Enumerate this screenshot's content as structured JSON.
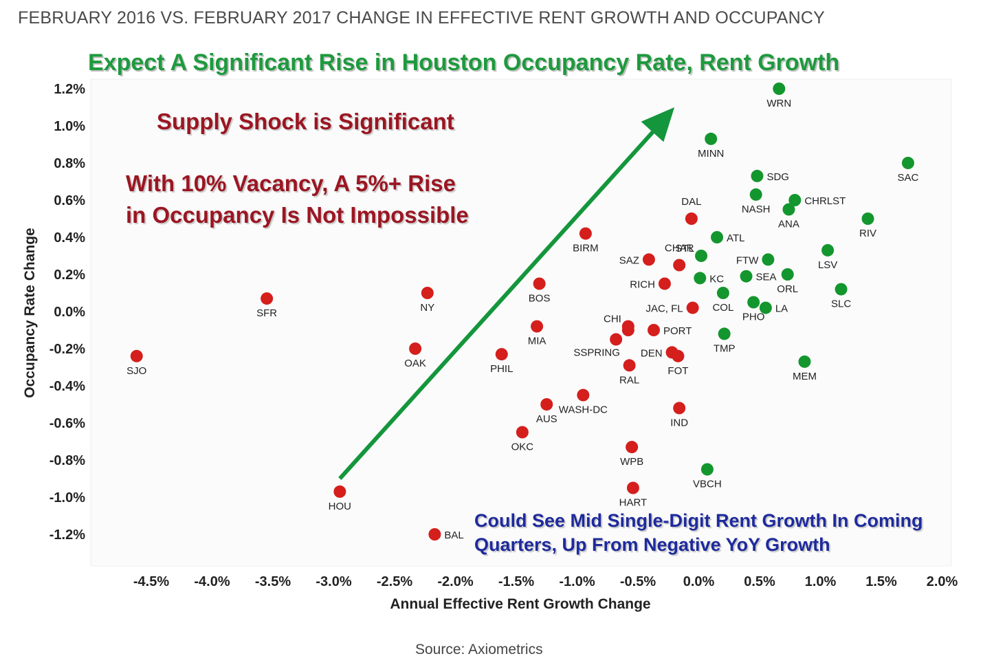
{
  "title": "FEBRUARY 2016 VS. FEBRUARY 2017 CHANGE IN EFFECTIVE RENT GROWTH AND OCCUPANCY",
  "headline": "Expect A Significant Rise in Houston Occupancy Rate, Rent Growth",
  "note_supply": "Supply Shock is Significant",
  "note_vacancy_1": "With 10% Vacancy, A 5%+ Rise",
  "note_vacancy_2": "in Occupancy Is Not Impossible",
  "note_growth_1": "Could See Mid Single-Digit Rent Growth In Coming",
  "note_growth_2": "Quarters, Up From Negative YoY Growth",
  "source": "Source: Axiometrics",
  "colors": {
    "red": "#d41f1c",
    "green": "#14962e",
    "arrow": "#14963c"
  },
  "chart_data": {
    "type": "scatter",
    "xlabel": "Annual Effective Rent Growth Change",
    "ylabel": "Occupancy Rate Change",
    "xlim": [
      -4.5,
      2.0
    ],
    "ylim": [
      -1.2,
      1.2
    ],
    "x_ticks": [
      "-4.5%",
      "-4.0%",
      "-3.5%",
      "-3.0%",
      "-2.5%",
      "-2.0%",
      "-1.5%",
      "-1.0%",
      "-0.5%",
      "0.0%",
      "0.5%",
      "1.0%",
      "1.5%",
      "2.0%"
    ],
    "y_ticks": [
      "1.2%",
      "1.0%",
      "0.8%",
      "0.6%",
      "0.4%",
      "0.2%",
      "0.0%",
      "-0.2%",
      "-0.4%",
      "-0.6%",
      "-0.8%",
      "-1.0%",
      "-1.2%"
    ],
    "arrow": {
      "from": [
        -2.95,
        -0.9
      ],
      "to": [
        -0.2,
        1.1
      ]
    },
    "points": [
      {
        "label": "SJO",
        "x": -4.62,
        "y": -0.24,
        "color": "red",
        "label_pos": "below"
      },
      {
        "label": "SFR",
        "x": -3.55,
        "y": 0.07,
        "color": "red",
        "label_pos": "below"
      },
      {
        "label": "NY",
        "x": -2.23,
        "y": 0.1,
        "color": "red",
        "label_pos": "below"
      },
      {
        "label": "OAK",
        "x": -2.33,
        "y": -0.2,
        "color": "red",
        "label_pos": "below"
      },
      {
        "label": "HOU",
        "x": -2.95,
        "y": -0.97,
        "color": "red",
        "label_pos": "below"
      },
      {
        "label": "BAL",
        "x": -2.17,
        "y": -1.2,
        "color": "red",
        "label_pos": "right"
      },
      {
        "label": "PHIL",
        "x": -1.62,
        "y": -0.23,
        "color": "red",
        "label_pos": "below"
      },
      {
        "label": "BOS",
        "x": -1.31,
        "y": 0.15,
        "color": "red",
        "label_pos": "below"
      },
      {
        "label": "MIA",
        "x": -1.33,
        "y": -0.08,
        "color": "red",
        "label_pos": "below"
      },
      {
        "label": "AUS",
        "x": -1.25,
        "y": -0.5,
        "color": "red",
        "label_pos": "below"
      },
      {
        "label": "OKC",
        "x": -1.45,
        "y": -0.65,
        "color": "red",
        "label_pos": "below"
      },
      {
        "label": "BIRM",
        "x": -0.93,
        "y": 0.42,
        "color": "red",
        "label_pos": "below"
      },
      {
        "label": "WASH-DC",
        "x": -0.95,
        "y": -0.45,
        "color": "red",
        "label_pos": "below"
      },
      {
        "label": "CHI",
        "x": -0.58,
        "y": -0.08,
        "color": "red",
        "label_pos": "left-up"
      },
      {
        "label": "",
        "x": -0.58,
        "y": -0.1,
        "color": "red",
        "label_pos": "none"
      },
      {
        "label": "SSPRING",
        "x": -0.68,
        "y": -0.15,
        "color": "red",
        "label_pos": "left-below"
      },
      {
        "label": "RAL",
        "x": -0.57,
        "y": -0.29,
        "color": "red",
        "label_pos": "below"
      },
      {
        "label": "PORT",
        "x": -0.37,
        "y": -0.1,
        "color": "red",
        "label_pos": "right"
      },
      {
        "label": "SAZ",
        "x": -0.41,
        "y": 0.28,
        "color": "red",
        "label_pos": "left"
      },
      {
        "label": "RICH",
        "x": -0.28,
        "y": 0.15,
        "color": "red",
        "label_pos": "left"
      },
      {
        "label": "WPB",
        "x": -0.55,
        "y": -0.73,
        "color": "red",
        "label_pos": "below"
      },
      {
        "label": "HART",
        "x": -0.54,
        "y": -0.95,
        "color": "red",
        "label_pos": "below"
      },
      {
        "label": "CHAR",
        "x": -0.16,
        "y": 0.25,
        "color": "red",
        "label_pos": "above"
      },
      {
        "label": "DAL",
        "x": -0.06,
        "y": 0.5,
        "color": "red",
        "label_pos": "above"
      },
      {
        "label": "JAC, FL",
        "x": -0.05,
        "y": 0.02,
        "color": "red",
        "label_pos": "left"
      },
      {
        "label": "DEN",
        "x": -0.22,
        "y": -0.22,
        "color": "red",
        "label_pos": "left"
      },
      {
        "label": "FOT",
        "x": -0.17,
        "y": -0.24,
        "color": "red",
        "label_pos": "below"
      },
      {
        "label": "IND",
        "x": -0.16,
        "y": -0.52,
        "color": "red",
        "label_pos": "below"
      },
      {
        "label": "WRN",
        "x": 0.66,
        "y": 1.2,
        "color": "green",
        "label_pos": "below"
      },
      {
        "label": "MINN",
        "x": 0.1,
        "y": 0.93,
        "color": "green",
        "label_pos": "below"
      },
      {
        "label": "SDG",
        "x": 0.48,
        "y": 0.73,
        "color": "green",
        "label_pos": "right"
      },
      {
        "label": "NASH",
        "x": 0.47,
        "y": 0.63,
        "color": "green",
        "label_pos": "below"
      },
      {
        "label": "CHRLST",
        "x": 0.79,
        "y": 0.6,
        "color": "green",
        "label_pos": "right"
      },
      {
        "label": "ANA",
        "x": 0.74,
        "y": 0.55,
        "color": "green",
        "label_pos": "below"
      },
      {
        "label": "SAC",
        "x": 1.72,
        "y": 0.8,
        "color": "green",
        "label_pos": "below"
      },
      {
        "label": "RIV",
        "x": 1.39,
        "y": 0.5,
        "color": "green",
        "label_pos": "below"
      },
      {
        "label": "ATL",
        "x": 0.15,
        "y": 0.4,
        "color": "green",
        "label_pos": "right"
      },
      {
        "label": "STL",
        "x": 0.02,
        "y": 0.3,
        "color": "green",
        "label_pos": "left-up"
      },
      {
        "label": "KC",
        "x": 0.01,
        "y": 0.18,
        "color": "green",
        "label_pos": "right"
      },
      {
        "label": "FTW",
        "x": 0.57,
        "y": 0.28,
        "color": "green",
        "label_pos": "left"
      },
      {
        "label": "SEA",
        "x": 0.39,
        "y": 0.19,
        "color": "green",
        "label_pos": "right"
      },
      {
        "label": "ORL",
        "x": 0.73,
        "y": 0.2,
        "color": "green",
        "label_pos": "below"
      },
      {
        "label": "LSV",
        "x": 1.06,
        "y": 0.33,
        "color": "green",
        "label_pos": "below"
      },
      {
        "label": "SLC",
        "x": 1.17,
        "y": 0.12,
        "color": "green",
        "label_pos": "below"
      },
      {
        "label": "COL",
        "x": 0.2,
        "y": 0.1,
        "color": "green",
        "label_pos": "below"
      },
      {
        "label": "PHO",
        "x": 0.45,
        "y": 0.05,
        "color": "green",
        "label_pos": "below"
      },
      {
        "label": "LA",
        "x": 0.55,
        "y": 0.02,
        "color": "green",
        "label_pos": "right"
      },
      {
        "label": "TMP",
        "x": 0.21,
        "y": -0.12,
        "color": "green",
        "label_pos": "below"
      },
      {
        "label": "MEM",
        "x": 0.87,
        "y": -0.27,
        "color": "green",
        "label_pos": "below"
      },
      {
        "label": "VBCH",
        "x": 0.07,
        "y": -0.85,
        "color": "green",
        "label_pos": "below"
      }
    ]
  }
}
